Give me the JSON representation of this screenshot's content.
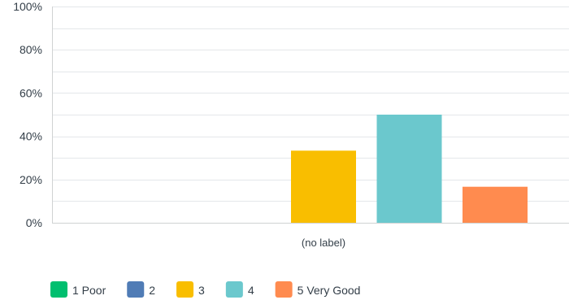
{
  "chart_data": {
    "type": "bar",
    "categories": [
      "(no label)"
    ],
    "series": [
      {
        "name": "1 Poor",
        "values": [
          0
        ],
        "color": "#00bf6f"
      },
      {
        "name": "2",
        "values": [
          0
        ],
        "color": "#507cb6"
      },
      {
        "name": "3",
        "values": [
          33.33
        ],
        "color": "#f9be00"
      },
      {
        "name": "4",
        "values": [
          50
        ],
        "color": "#6bc8cd"
      },
      {
        "name": "5 Very Good",
        "values": [
          16.67
        ],
        "color": "#ff8b4f"
      }
    ],
    "ylim": [
      0,
      100
    ],
    "yticks": [
      "0%",
      "20%",
      "40%",
      "60%",
      "80%",
      "100%"
    ],
    "ytick_values": [
      0,
      20,
      40,
      60,
      80,
      100
    ],
    "grid": true,
    "legend": "bottom-left"
  }
}
